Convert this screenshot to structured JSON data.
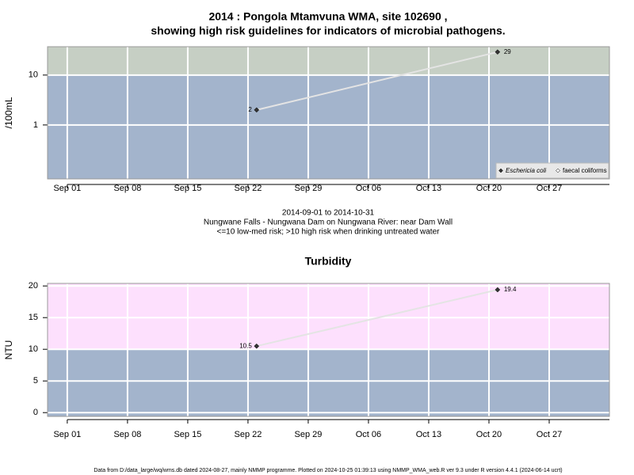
{
  "chart_data": [
    {
      "type": "line",
      "title": "2014 : Pongola Mtamvuna WMA, site 102690 ,",
      "subtitle": "showing high risk guidelines for indicators of microbial pathogens.",
      "ylabel": "/100mL",
      "log_y": true,
      "ylim": [
        0.083,
        37
      ],
      "yticks": [
        1,
        10
      ],
      "xlim": [
        "2014-08-29T17:00Z",
        "2014-11-03"
      ],
      "xticks": [
        {
          "value": "2014-09-01",
          "label": "Sep 01"
        },
        {
          "value": "2014-09-08",
          "label": "Sep 08"
        },
        {
          "value": "2014-09-15",
          "label": "Sep 15"
        },
        {
          "value": "2014-09-22",
          "label": "Sep 22"
        },
        {
          "value": "2014-09-29",
          "label": "Sep 29"
        },
        {
          "value": "2014-10-06",
          "label": "Oct 06"
        },
        {
          "value": "2014-10-13",
          "label": "Oct 13"
        },
        {
          "value": "2014-10-20",
          "label": "Oct 20"
        },
        {
          "value": "2014-10-27",
          "label": "Oct 27"
        }
      ],
      "grid": true,
      "threshold": 10,
      "band_color": "#c6cfc4",
      "base_color": "#a3b4cc",
      "line_color": "#e4e4e4",
      "legend": "bottom-right",
      "x": [
        "2014-09-23",
        "2014-10-21"
      ],
      "series": [
        {
          "name": "Eschericia coli",
          "color": "#333333",
          "values": [
            2,
            29
          ]
        },
        {
          "name": "faecal coliforms",
          "color": "#ffffff",
          "values": [
            null,
            null
          ]
        }
      ],
      "notes": [
        "2014-09-01 to 2014-10-31",
        "Nungwane Falls - Nungwana Dam on Nungwana River: near Dam Wall",
        "<=10 low-med risk; >10 high risk when drinking untreated water"
      ]
    },
    {
      "type": "line",
      "title": "Turbidity",
      "ylabel": "NTU",
      "log_y": false,
      "ylim": [
        -0.6,
        20.4
      ],
      "yticks": [
        0,
        5,
        10,
        15,
        20
      ],
      "xlim": [
        "2014-08-29T17:00Z",
        "2014-11-03"
      ],
      "xticks": [
        {
          "value": "2014-09-01",
          "label": "Sep 01"
        },
        {
          "value": "2014-09-08",
          "label": "Sep 08"
        },
        {
          "value": "2014-09-15",
          "label": "Sep 15"
        },
        {
          "value": "2014-09-22",
          "label": "Sep 22"
        },
        {
          "value": "2014-09-29",
          "label": "Sep 29"
        },
        {
          "value": "2014-10-06",
          "label": "Oct 06"
        },
        {
          "value": "2014-10-13",
          "label": "Oct 13"
        },
        {
          "value": "2014-10-20",
          "label": "Oct 20"
        },
        {
          "value": "2014-10-27",
          "label": "Oct 27"
        }
      ],
      "grid": true,
      "threshold": 10,
      "band_color": "#fde0fd",
      "base_color": "#a3b4cc",
      "line_color": "#e4e4e4",
      "x": [
        "2014-09-23",
        "2014-10-21"
      ],
      "series": [
        {
          "name": "Turbidity",
          "color": "#333333",
          "values": [
            10.5,
            19.4
          ]
        }
      ]
    }
  ],
  "footer": "Data from D:/data_large/wq/wms.db dated 2024-08-27, mainly NMMP programme. Plotted on 2024-10-25 01:39:13 using NMMP_WMA_web.R ver 9.3 under R version 4.4.1 (2024-06-14 ucrt)"
}
